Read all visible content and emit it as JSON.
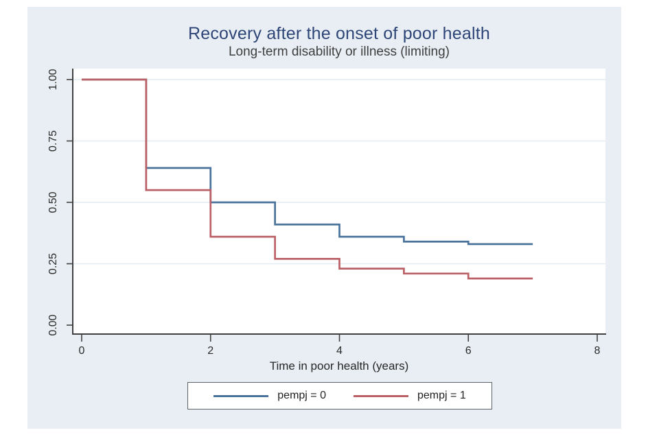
{
  "figure": {
    "background_color": "#e8eef3",
    "title_color": "#2e4577"
  },
  "chart_data": {
    "type": "line",
    "variant": "kaplan-meier-step",
    "title": "Recovery after the onset of poor health",
    "subtitle": "Long-term disability or illness (limiting)",
    "xlabel": "Time in poor health (years)",
    "ylabel": "",
    "xlim": [
      0,
      8
    ],
    "ylim": [
      0.0,
      1.0
    ],
    "x_ticks": [
      "0",
      "2",
      "4",
      "6",
      "8"
    ],
    "y_ticks": [
      "0.00",
      "0.25",
      "0.50",
      "0.75",
      "1.00"
    ],
    "grid": "horizontal",
    "plot_background": "#ffffff",
    "grid_color": "#e2ecf2",
    "axis_color": "#404040",
    "tick_label_color": "#2a2a2a",
    "legend_position": "bottom-center",
    "series": [
      {
        "name": "pempj = 0",
        "color": "#4a739c",
        "points": [
          [
            0,
            1.0
          ],
          [
            1,
            0.64
          ],
          [
            2,
            0.5
          ],
          [
            3,
            0.41
          ],
          [
            4,
            0.36
          ],
          [
            5,
            0.34
          ],
          [
            6,
            0.33
          ],
          [
            7,
            0.33
          ]
        ]
      },
      {
        "name": "pempj = 1",
        "color": "#ba6066",
        "points": [
          [
            0,
            1.0
          ],
          [
            1,
            0.55
          ],
          [
            2,
            0.36
          ],
          [
            3,
            0.27
          ],
          [
            4,
            0.23
          ],
          [
            5,
            0.21
          ],
          [
            6,
            0.19
          ],
          [
            7,
            0.19
          ]
        ]
      }
    ]
  }
}
